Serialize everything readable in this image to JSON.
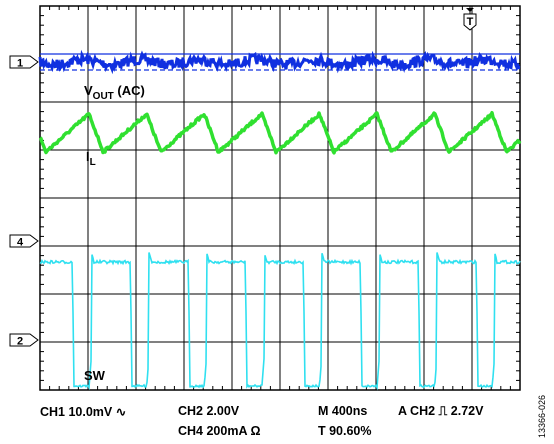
{
  "chart_data": {
    "type": "line",
    "title": "",
    "grid": true,
    "divisions": {
      "x": 10,
      "y": 8
    },
    "trigger_marker": "T",
    "channels": [
      {
        "name": "1",
        "label": "",
        "color": "#1030e0",
        "ground_marker": "1"
      },
      {
        "name": "4",
        "label": "",
        "color": "#30e030",
        "ground_marker": "4"
      },
      {
        "name": "2",
        "label": "",
        "color": "#30e0f0",
        "ground_marker": "2"
      }
    ],
    "trace_labels": [
      {
        "main": "V",
        "sub": "OUT",
        "suffix": " (AC)"
      },
      {
        "main": "I",
        "sub": "L",
        "suffix": ""
      },
      {
        "main": "SW",
        "sub": "",
        "suffix": ""
      }
    ],
    "switching_period_div": 1.2,
    "footer": {
      "ch1": "CH1  10.0mV",
      "ch1_coupling": "∿",
      "ch2": "CH2  2.00V",
      "ch4": "CH4  200mA Ω",
      "timebase": "M 400ns",
      "trigger_prefix": "A  CH2",
      "trigger_slope": "⎍",
      "trigger_level": "2.72V",
      "trigger_position": "T  90.60%"
    },
    "figure_id": "13366-026"
  }
}
